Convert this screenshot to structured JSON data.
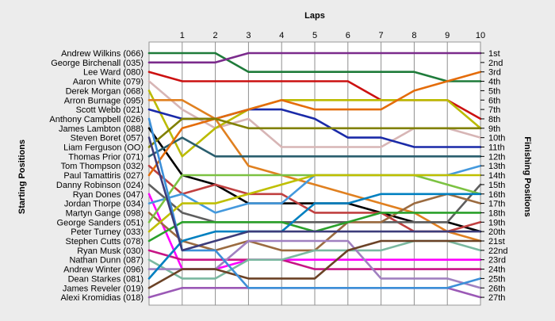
{
  "chart_data": {
    "type": "line",
    "title": "",
    "xlabel": "Laps",
    "ylabel_left": "Starting Positions",
    "ylabel_right": "Finishing Positions",
    "x": [
      0,
      1,
      2,
      3,
      4,
      5,
      6,
      7,
      8,
      9,
      10
    ],
    "x_tick_labels": [
      "1",
      "2",
      "3",
      "4",
      "5",
      "6",
      "7",
      "8",
      "9",
      "10"
    ],
    "y_reversed": true,
    "ylim": [
      1,
      27
    ],
    "grid": "vertical",
    "finishing_labels": [
      "1st",
      "2nd",
      "3rd",
      "4th",
      "5th",
      "6th",
      "7th",
      "8th",
      "9th",
      "10th",
      "11th",
      "12th",
      "13th",
      "14th",
      "15th",
      "16th",
      "17th",
      "18th",
      "19th",
      "20th",
      "21st",
      "22nd",
      "23rd",
      "24th",
      "25th",
      "26th",
      "27th"
    ],
    "series": [
      {
        "name": "Andrew Wilkins (066)",
        "color": "#1e7b3a",
        "values": [
          1,
          1,
          1,
          3,
          3,
          3,
          3,
          3,
          3,
          4,
          4
        ]
      },
      {
        "name": "George Birchenall (035)",
        "color": "#7b2b8c",
        "values": [
          2,
          2,
          2,
          1,
          1,
          1,
          1,
          1,
          1,
          1,
          1
        ]
      },
      {
        "name": "Lee Ward (080)",
        "color": "#cc1111",
        "values": [
          3,
          4,
          4,
          4,
          4,
          4,
          4,
          6,
          6,
          6,
          8
        ]
      },
      {
        "name": "Aaron White (079)",
        "color": "#d7b5b5",
        "values": [
          4,
          7,
          9,
          8,
          11,
          11,
          11,
          11,
          9,
          9,
          10
        ]
      },
      {
        "name": "Derek Morgan (068)",
        "color": "#bbbb00",
        "values": [
          5,
          12,
          9,
          7,
          6,
          6,
          6,
          6,
          6,
          6,
          9
        ]
      },
      {
        "name": "Arron Burnage (095)",
        "color": "#e08020",
        "values": [
          6,
          6,
          8,
          13,
          14,
          15,
          16,
          17,
          18,
          20,
          21
        ]
      },
      {
        "name": "Scott Webb (021)",
        "color": "#1a2aa8",
        "values": [
          7,
          8,
          8,
          7,
          7,
          8,
          10,
          10,
          11,
          11,
          11
        ]
      },
      {
        "name": "Anthony Campbell (026)",
        "color": "#000000",
        "values": [
          9,
          14,
          15,
          17,
          17,
          17,
          17,
          18,
          19,
          19,
          20
        ]
      },
      {
        "name": "James Lambton (088)",
        "color": "#2a5e6e",
        "values": [
          12,
          10,
          12,
          12,
          12,
          12,
          12,
          12,
          12,
          12,
          12
        ]
      },
      {
        "name": "Steven Boret (057)",
        "color": "#c04040",
        "values": [
          13,
          16,
          15,
          16,
          16,
          18,
          18,
          18,
          20,
          20,
          19
        ]
      },
      {
        "name": "Liam Ferguson (OO)",
        "color": "#e46c0a",
        "values": [
          14,
          9,
          8,
          7,
          6,
          7,
          7,
          7,
          5,
          4,
          3
        ]
      },
      {
        "name": "Thomas Prior (071)",
        "color": "#5e5e5e",
        "values": [
          15,
          18,
          19,
          19,
          19,
          19,
          19,
          19,
          19,
          19,
          15
        ]
      },
      {
        "name": "Tom Thompson (032)",
        "color": "#808000",
        "values": [
          11,
          8,
          8,
          9,
          9,
          9,
          9,
          9,
          9,
          9,
          9
        ]
      },
      {
        "name": "Paul Tamattiris (027)",
        "color": "#ff00ff",
        "values": [
          16,
          24,
          24,
          23,
          23,
          23,
          23,
          23,
          23,
          23,
          23
        ]
      },
      {
        "name": "Danny Robinson (024)",
        "color": "#4499dd",
        "values": [
          17,
          16,
          18,
          17,
          17,
          14,
          14,
          14,
          14,
          14,
          13
        ]
      },
      {
        "name": "Ryan Dones (047)",
        "color": "#9b6b40",
        "values": [
          18,
          21,
          22,
          21,
          22,
          22,
          19,
          19,
          17,
          16,
          17
        ]
      },
      {
        "name": "Jordan Thorpe (034)",
        "color": "#7cc242",
        "values": [
          19,
          14,
          14,
          14,
          14,
          14,
          14,
          14,
          14,
          15,
          16
        ]
      },
      {
        "name": "Martyn Gange (098)",
        "color": "#bfbf00",
        "values": [
          20,
          17,
          17,
          16,
          15,
          14,
          14,
          14,
          14,
          14,
          14
        ]
      },
      {
        "name": "George Sanders (051)",
        "color": "#2aa02a",
        "values": [
          21,
          19,
          19,
          19,
          19,
          20,
          19,
          18,
          18,
          18,
          18
        ]
      },
      {
        "name": "Peter Turney (033)",
        "color": "#c71585",
        "values": [
          22,
          23,
          23,
          23,
          23,
          24,
          24,
          24,
          24,
          24,
          24
        ]
      },
      {
        "name": "Stephen Cutts (078)",
        "color": "#7ab8a0",
        "values": [
          23,
          25,
          25,
          23,
          23,
          22,
          22,
          22,
          21,
          21,
          22
        ]
      },
      {
        "name": "Ryan Musk (030)",
        "color": "#a080c0",
        "values": [
          24,
          24,
          24,
          21,
          21,
          21,
          21,
          25,
          25,
          25,
          26
        ]
      },
      {
        "name": "Nathan Dunn (087)",
        "color": "#0080c0",
        "values": [
          25,
          21,
          20,
          20,
          20,
          17,
          17,
          16,
          16,
          16,
          16
        ]
      },
      {
        "name": "Andrew Winter (096)",
        "color": "#6b4226",
        "values": [
          26,
          24,
          24,
          25,
          25,
          25,
          22,
          21,
          21,
          21,
          21
        ]
      },
      {
        "name": "Dean Starkes (081)",
        "color": "#9b59b6",
        "values": [
          27,
          26,
          26,
          26,
          26,
          26,
          26,
          26,
          26,
          26,
          27
        ]
      },
      {
        "name": "James Reveler (019)",
        "color": "#3c8fd8",
        "values": [
          8,
          22,
          22,
          26,
          26,
          26,
          26,
          26,
          26,
          26,
          25
        ]
      },
      {
        "name": "Alexi Kromidias (018)",
        "color": "#3c3c7a",
        "values": [
          10,
          22,
          21,
          20,
          20,
          20,
          20,
          20,
          20,
          20,
          20
        ]
      }
    ]
  }
}
